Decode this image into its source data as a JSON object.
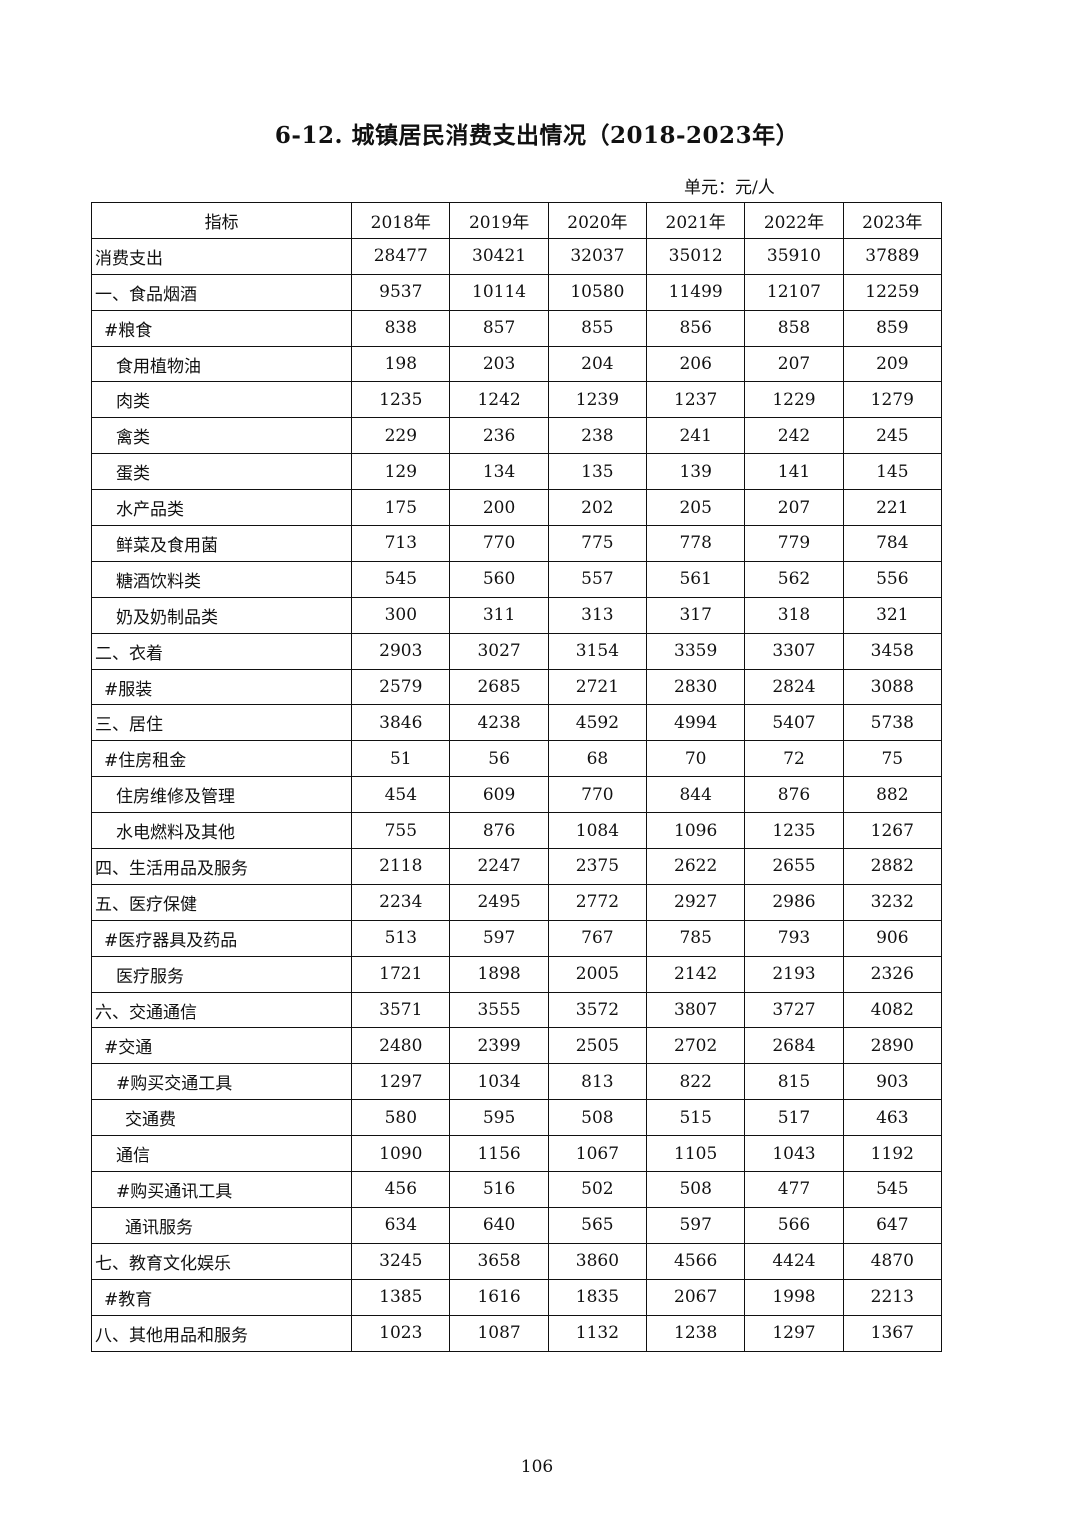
{
  "title": "6-12. 城镇居民消费支出情况（2018-2023年）",
  "unit": "单元：元/人",
  "table": {
    "header": [
      "指标",
      "2018年",
      "2019年",
      "2020年",
      "2021年",
      "2022年",
      "2023年"
    ],
    "rows": [
      {
        "label": "消费支出",
        "level": 0,
        "values": [
          "28477",
          "30421",
          "32037",
          "35012",
          "35910",
          "37889"
        ]
      },
      {
        "label": "一、食品烟酒",
        "level": 0,
        "values": [
          "9537",
          "10114",
          "10580",
          "11499",
          "12107",
          "12259"
        ]
      },
      {
        "label": "#粮食",
        "level": 1,
        "values": [
          "838",
          "857",
          "855",
          "856",
          "858",
          "859"
        ]
      },
      {
        "label": "食用植物油",
        "level": 2,
        "values": [
          "198",
          "203",
          "204",
          "206",
          "207",
          "209"
        ]
      },
      {
        "label": "肉类",
        "level": 2,
        "values": [
          "1235",
          "1242",
          "1239",
          "1237",
          "1229",
          "1279"
        ]
      },
      {
        "label": "禽类",
        "level": 2,
        "values": [
          "229",
          "236",
          "238",
          "241",
          "242",
          "245"
        ]
      },
      {
        "label": "蛋类",
        "level": 2,
        "values": [
          "129",
          "134",
          "135",
          "139",
          "141",
          "145"
        ]
      },
      {
        "label": "水产品类",
        "level": 2,
        "values": [
          "175",
          "200",
          "202",
          "205",
          "207",
          "221"
        ]
      },
      {
        "label": "鲜菜及食用菌",
        "level": 2,
        "values": [
          "713",
          "770",
          "775",
          "778",
          "779",
          "784"
        ]
      },
      {
        "label": "糖酒饮料类",
        "level": 2,
        "values": [
          "545",
          "560",
          "557",
          "561",
          "562",
          "556"
        ]
      },
      {
        "label": "奶及奶制品类",
        "level": 2,
        "values": [
          "300",
          "311",
          "313",
          "317",
          "318",
          "321"
        ]
      },
      {
        "label": "二、衣着",
        "level": 0,
        "values": [
          "2903",
          "3027",
          "3154",
          "3359",
          "3307",
          "3458"
        ]
      },
      {
        "label": "#服装",
        "level": 1,
        "values": [
          "2579",
          "2685",
          "2721",
          "2830",
          "2824",
          "3088"
        ]
      },
      {
        "label": "三、居住",
        "level": 0,
        "values": [
          "3846",
          "4238",
          "4592",
          "4994",
          "5407",
          "5738"
        ]
      },
      {
        "label": "#住房租金",
        "level": 1,
        "values": [
          "51",
          "56",
          "68",
          "70",
          "72",
          "75"
        ]
      },
      {
        "label": "住房维修及管理",
        "level": 2,
        "values": [
          "454",
          "609",
          "770",
          "844",
          "876",
          "882"
        ]
      },
      {
        "label": "水电燃料及其他",
        "level": 2,
        "values": [
          "755",
          "876",
          "1084",
          "1096",
          "1235",
          "1267"
        ]
      },
      {
        "label": "四、生活用品及服务",
        "level": 0,
        "values": [
          "2118",
          "2247",
          "2375",
          "2622",
          "2655",
          "2882"
        ]
      },
      {
        "label": "五、医疗保健",
        "level": 0,
        "values": [
          "2234",
          "2495",
          "2772",
          "2927",
          "2986",
          "3232"
        ]
      },
      {
        "label": "#医疗器具及药品",
        "level": 1,
        "values": [
          "513",
          "597",
          "767",
          "785",
          "793",
          "906"
        ]
      },
      {
        "label": "医疗服务",
        "level": 2,
        "values": [
          "1721",
          "1898",
          "2005",
          "2142",
          "2193",
          "2326"
        ]
      },
      {
        "label": "六、交通通信",
        "level": 0,
        "values": [
          "3571",
          "3555",
          "3572",
          "3807",
          "3727",
          "4082"
        ]
      },
      {
        "label": "#交通",
        "level": 1,
        "values": [
          "2480",
          "2399",
          "2505",
          "2702",
          "2684",
          "2890"
        ]
      },
      {
        "label": "#购买交通工具",
        "level": 2,
        "values": [
          "1297",
          "1034",
          "813",
          "822",
          "815",
          "903"
        ]
      },
      {
        "label": "交通费",
        "level": 3,
        "values": [
          "580",
          "595",
          "508",
          "515",
          "517",
          "463"
        ]
      },
      {
        "label": "通信",
        "level": 2,
        "values": [
          "1090",
          "1156",
          "1067",
          "1105",
          "1043",
          "1192"
        ]
      },
      {
        "label": "#购买通讯工具",
        "level": 2,
        "values": [
          "456",
          "516",
          "502",
          "508",
          "477",
          "545"
        ]
      },
      {
        "label": "通讯服务",
        "level": 3,
        "values": [
          "634",
          "640",
          "565",
          "597",
          "566",
          "647"
        ]
      },
      {
        "label": "七、教育文化娱乐",
        "level": 0,
        "values": [
          "3245",
          "3658",
          "3860",
          "4566",
          "4424",
          "4870"
        ]
      },
      {
        "label": "#教育",
        "level": 1,
        "values": [
          "1385",
          "1616",
          "1835",
          "2067",
          "1998",
          "2213"
        ]
      },
      {
        "label": "八、其他用品和服务",
        "level": 0,
        "values": [
          "1023",
          "1087",
          "1132",
          "1238",
          "1297",
          "1367"
        ]
      }
    ]
  },
  "page_number": "106"
}
